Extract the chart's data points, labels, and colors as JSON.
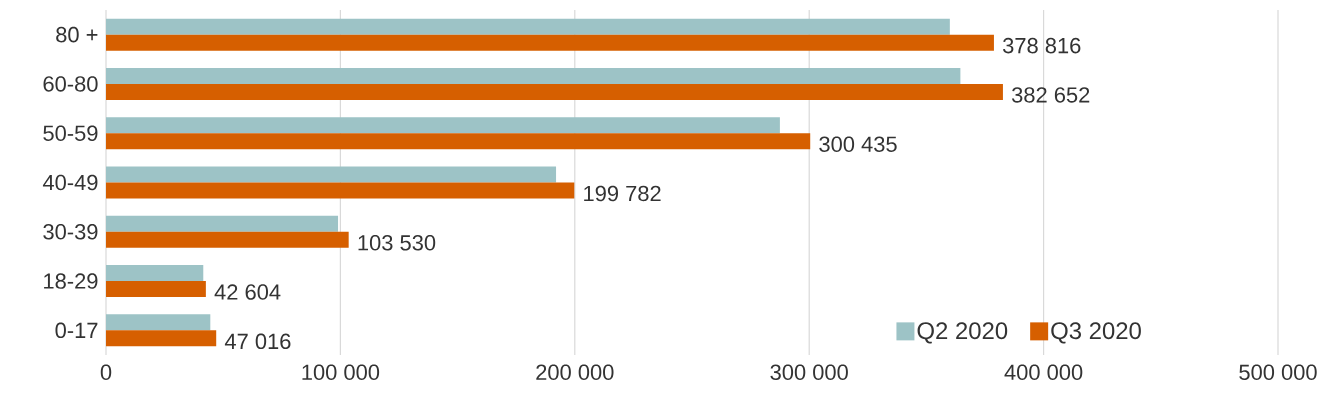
{
  "chart_data": {
    "type": "bar",
    "orientation": "horizontal",
    "categories": [
      "80 +",
      "60-80",
      "50-59",
      "40-49",
      "30-39",
      "18-29",
      "0-17"
    ],
    "series": [
      {
        "name": "Q2 2020",
        "color": "#9dc3c6",
        "values": [
          360000,
          364500,
          287500,
          192000,
          99000,
          41500,
          44500
        ]
      },
      {
        "name": "Q3 2020",
        "color": "#d65f00",
        "values": [
          378816,
          382652,
          300435,
          199782,
          103530,
          42604,
          47016
        ],
        "value_labels": [
          "378 816",
          "382 652",
          "300 435",
          "199 782",
          "103 530",
          "42 604",
          "47 016"
        ]
      }
    ],
    "xlim": [
      0,
      500000
    ],
    "xticks": [
      0,
      {
        "value": 100000,
        "label": "100 000"
      },
      {
        "value": 200000,
        "label": "200 000"
      },
      {
        "value": 300000,
        "label": "300 000"
      },
      {
        "value": 400000,
        "label": "400 000"
      },
      {
        "value": 500000,
        "label": "500 000"
      }
    ],
    "grid": "x",
    "legend": "bottom right"
  }
}
